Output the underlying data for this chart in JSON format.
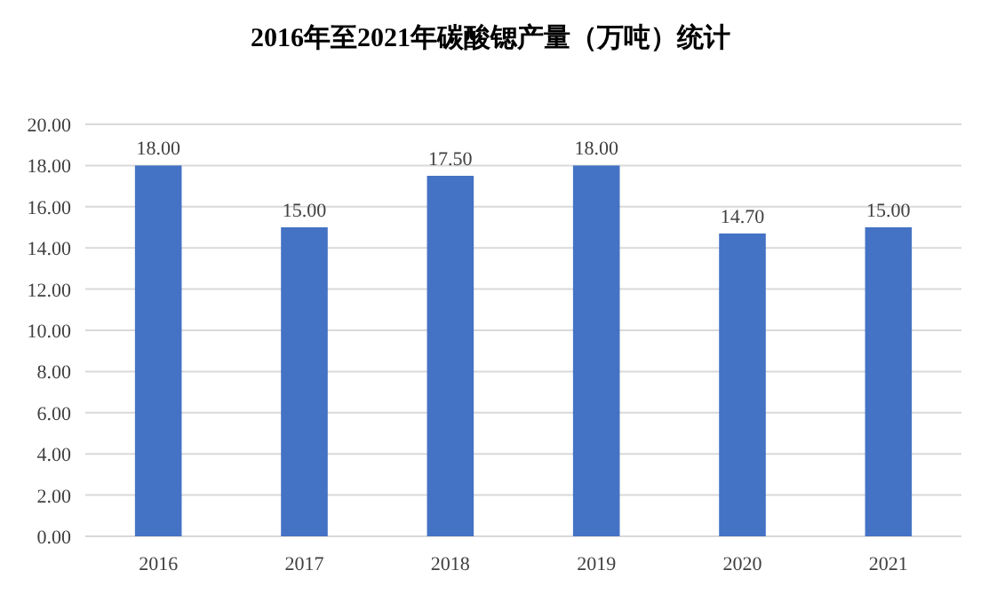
{
  "chart_data": {
    "type": "bar",
    "title": "2016年至2021年碳酸锶产量（万吨）统计",
    "categories": [
      "2016",
      "2017",
      "2018",
      "2019",
      "2020",
      "2021"
    ],
    "values": [
      18.0,
      15.0,
      17.5,
      18.0,
      14.7,
      15.0
    ],
    "value_labels": [
      "18.00",
      "15.00",
      "17.50",
      "18.00",
      "14.70",
      "15.00"
    ],
    "color": "#4472c4",
    "ylim": [
      0,
      20
    ],
    "yticks": [
      {
        "value": 0,
        "label": "0.00"
      },
      {
        "value": 2,
        "label": "2.00"
      },
      {
        "value": 4,
        "label": "4.00"
      },
      {
        "value": 6,
        "label": "6.00"
      },
      {
        "value": 8,
        "label": "8.00"
      },
      {
        "value": 10,
        "label": "10.00"
      },
      {
        "value": 12,
        "label": "12.00"
      },
      {
        "value": 14,
        "label": "14.00"
      },
      {
        "value": 16,
        "label": "16.00"
      },
      {
        "value": 18,
        "label": "18.00"
      },
      {
        "value": 20,
        "label": "20.00"
      }
    ],
    "grid": "y"
  }
}
